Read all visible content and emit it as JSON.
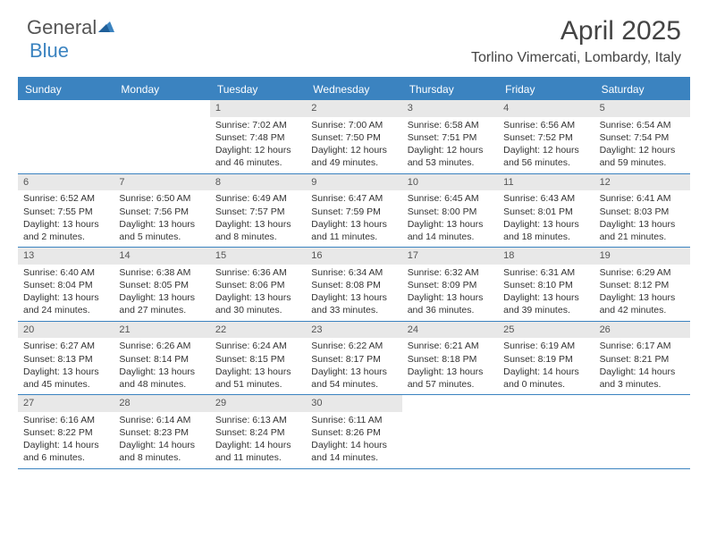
{
  "logo": {
    "text1": "General",
    "text2": "Blue"
  },
  "title": "April 2025",
  "location": "Torlino Vimercati, Lombardy, Italy",
  "colors": {
    "accent": "#3b83c0",
    "header_bg": "#3b83c0",
    "daynum_bg": "#e8e8e8",
    "text": "#333333",
    "logo_gray": "#555555"
  },
  "day_names": [
    "Sunday",
    "Monday",
    "Tuesday",
    "Wednesday",
    "Thursday",
    "Friday",
    "Saturday"
  ],
  "weeks": [
    [
      {
        "n": "",
        "sr": "",
        "ss": "",
        "dl": ""
      },
      {
        "n": "",
        "sr": "",
        "ss": "",
        "dl": ""
      },
      {
        "n": "1",
        "sr": "Sunrise: 7:02 AM",
        "ss": "Sunset: 7:48 PM",
        "dl": "Daylight: 12 hours and 46 minutes."
      },
      {
        "n": "2",
        "sr": "Sunrise: 7:00 AM",
        "ss": "Sunset: 7:50 PM",
        "dl": "Daylight: 12 hours and 49 minutes."
      },
      {
        "n": "3",
        "sr": "Sunrise: 6:58 AM",
        "ss": "Sunset: 7:51 PM",
        "dl": "Daylight: 12 hours and 53 minutes."
      },
      {
        "n": "4",
        "sr": "Sunrise: 6:56 AM",
        "ss": "Sunset: 7:52 PM",
        "dl": "Daylight: 12 hours and 56 minutes."
      },
      {
        "n": "5",
        "sr": "Sunrise: 6:54 AM",
        "ss": "Sunset: 7:54 PM",
        "dl": "Daylight: 12 hours and 59 minutes."
      }
    ],
    [
      {
        "n": "6",
        "sr": "Sunrise: 6:52 AM",
        "ss": "Sunset: 7:55 PM",
        "dl": "Daylight: 13 hours and 2 minutes."
      },
      {
        "n": "7",
        "sr": "Sunrise: 6:50 AM",
        "ss": "Sunset: 7:56 PM",
        "dl": "Daylight: 13 hours and 5 minutes."
      },
      {
        "n": "8",
        "sr": "Sunrise: 6:49 AM",
        "ss": "Sunset: 7:57 PM",
        "dl": "Daylight: 13 hours and 8 minutes."
      },
      {
        "n": "9",
        "sr": "Sunrise: 6:47 AM",
        "ss": "Sunset: 7:59 PM",
        "dl": "Daylight: 13 hours and 11 minutes."
      },
      {
        "n": "10",
        "sr": "Sunrise: 6:45 AM",
        "ss": "Sunset: 8:00 PM",
        "dl": "Daylight: 13 hours and 14 minutes."
      },
      {
        "n": "11",
        "sr": "Sunrise: 6:43 AM",
        "ss": "Sunset: 8:01 PM",
        "dl": "Daylight: 13 hours and 18 minutes."
      },
      {
        "n": "12",
        "sr": "Sunrise: 6:41 AM",
        "ss": "Sunset: 8:03 PM",
        "dl": "Daylight: 13 hours and 21 minutes."
      }
    ],
    [
      {
        "n": "13",
        "sr": "Sunrise: 6:40 AM",
        "ss": "Sunset: 8:04 PM",
        "dl": "Daylight: 13 hours and 24 minutes."
      },
      {
        "n": "14",
        "sr": "Sunrise: 6:38 AM",
        "ss": "Sunset: 8:05 PM",
        "dl": "Daylight: 13 hours and 27 minutes."
      },
      {
        "n": "15",
        "sr": "Sunrise: 6:36 AM",
        "ss": "Sunset: 8:06 PM",
        "dl": "Daylight: 13 hours and 30 minutes."
      },
      {
        "n": "16",
        "sr": "Sunrise: 6:34 AM",
        "ss": "Sunset: 8:08 PM",
        "dl": "Daylight: 13 hours and 33 minutes."
      },
      {
        "n": "17",
        "sr": "Sunrise: 6:32 AM",
        "ss": "Sunset: 8:09 PM",
        "dl": "Daylight: 13 hours and 36 minutes."
      },
      {
        "n": "18",
        "sr": "Sunrise: 6:31 AM",
        "ss": "Sunset: 8:10 PM",
        "dl": "Daylight: 13 hours and 39 minutes."
      },
      {
        "n": "19",
        "sr": "Sunrise: 6:29 AM",
        "ss": "Sunset: 8:12 PM",
        "dl": "Daylight: 13 hours and 42 minutes."
      }
    ],
    [
      {
        "n": "20",
        "sr": "Sunrise: 6:27 AM",
        "ss": "Sunset: 8:13 PM",
        "dl": "Daylight: 13 hours and 45 minutes."
      },
      {
        "n": "21",
        "sr": "Sunrise: 6:26 AM",
        "ss": "Sunset: 8:14 PM",
        "dl": "Daylight: 13 hours and 48 minutes."
      },
      {
        "n": "22",
        "sr": "Sunrise: 6:24 AM",
        "ss": "Sunset: 8:15 PM",
        "dl": "Daylight: 13 hours and 51 minutes."
      },
      {
        "n": "23",
        "sr": "Sunrise: 6:22 AM",
        "ss": "Sunset: 8:17 PM",
        "dl": "Daylight: 13 hours and 54 minutes."
      },
      {
        "n": "24",
        "sr": "Sunrise: 6:21 AM",
        "ss": "Sunset: 8:18 PM",
        "dl": "Daylight: 13 hours and 57 minutes."
      },
      {
        "n": "25",
        "sr": "Sunrise: 6:19 AM",
        "ss": "Sunset: 8:19 PM",
        "dl": "Daylight: 14 hours and 0 minutes."
      },
      {
        "n": "26",
        "sr": "Sunrise: 6:17 AM",
        "ss": "Sunset: 8:21 PM",
        "dl": "Daylight: 14 hours and 3 minutes."
      }
    ],
    [
      {
        "n": "27",
        "sr": "Sunrise: 6:16 AM",
        "ss": "Sunset: 8:22 PM",
        "dl": "Daylight: 14 hours and 6 minutes."
      },
      {
        "n": "28",
        "sr": "Sunrise: 6:14 AM",
        "ss": "Sunset: 8:23 PM",
        "dl": "Daylight: 14 hours and 8 minutes."
      },
      {
        "n": "29",
        "sr": "Sunrise: 6:13 AM",
        "ss": "Sunset: 8:24 PM",
        "dl": "Daylight: 14 hours and 11 minutes."
      },
      {
        "n": "30",
        "sr": "Sunrise: 6:11 AM",
        "ss": "Sunset: 8:26 PM",
        "dl": "Daylight: 14 hours and 14 minutes."
      },
      {
        "n": "",
        "sr": "",
        "ss": "",
        "dl": ""
      },
      {
        "n": "",
        "sr": "",
        "ss": "",
        "dl": ""
      },
      {
        "n": "",
        "sr": "",
        "ss": "",
        "dl": ""
      }
    ]
  ]
}
